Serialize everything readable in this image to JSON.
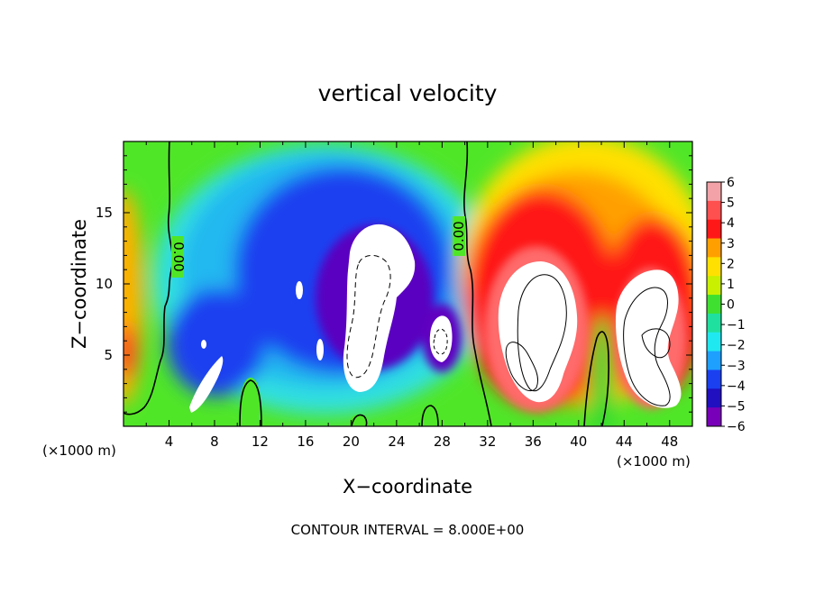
{
  "chart_data": {
    "type": "heatmap",
    "title": "vertical velocity",
    "xlabel": "X−coordinate",
    "ylabel": "Z−coordinate",
    "x_unit_left": "(×1000 m)",
    "x_unit_right": "(×1000 m)",
    "xlim": [
      0,
      50
    ],
    "ylim": [
      0,
      20
    ],
    "x_ticks": [
      4,
      8,
      12,
      16,
      20,
      24,
      28,
      32,
      36,
      40,
      44,
      48
    ],
    "y_ticks": [
      5,
      10,
      15
    ],
    "colorbar": {
      "range": [
        -6,
        6
      ],
      "ticks": [
        6,
        5,
        4,
        3,
        2,
        1,
        0,
        -1,
        -2,
        -3,
        -4,
        -5,
        -6
      ],
      "tick_labels": [
        "6",
        "5",
        "4",
        "3",
        "2",
        "1",
        "0",
        "−1",
        "−2",
        "−3",
        "−4",
        "−5",
        "−6"
      ],
      "colors": [
        "#f3a3a8",
        "#ff5050",
        "#ff1818",
        "#ffa000",
        "#ffe000",
        "#c8f000",
        "#40e030",
        "#20e0a0",
        "#20e8f0",
        "#1ea0ff",
        "#1a40f0",
        "#2010c0",
        "#7800b8"
      ]
    },
    "contour_label": "0.00",
    "contour_interval_text": "CONTOUR INTERVAL = 8.000E+00",
    "features": [
      {
        "name": "updraft-core-A",
        "x": 37.5,
        "z": 8.5,
        "w": 9
      },
      {
        "name": "updraft-core-B",
        "x": 45.5,
        "z": 7,
        "w": 9
      },
      {
        "name": "downdraft-core-A",
        "x": 21.5,
        "z": 9,
        "w": -9
      },
      {
        "name": "downdraft-core-B",
        "x": 28,
        "z": 6.5,
        "w": -8
      },
      {
        "name": "downdraft-region",
        "x": 20,
        "z": 9,
        "w": -4.5
      }
    ],
    "zero_contour_x": [
      4,
      30,
      40
    ]
  }
}
